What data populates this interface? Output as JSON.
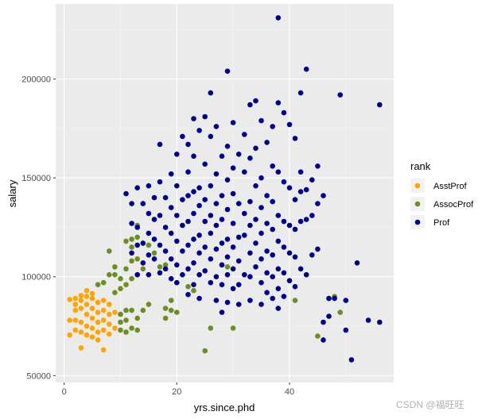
{
  "chart_data": {
    "type": "scatter",
    "title": "",
    "xlabel": "yrs.since.phd",
    "ylabel": "salary",
    "xlim": [
      -1.5,
      58.5
    ],
    "ylim": [
      46500,
      238000
    ],
    "x_ticks": [
      0,
      20,
      40
    ],
    "x_minor_ticks": [
      10,
      30,
      50
    ],
    "y_ticks": [
      50000,
      100000,
      150000,
      200000
    ],
    "y_minor_ticks": [
      75000,
      125000,
      175000,
      225000
    ],
    "grid": true,
    "legend": {
      "title": "rank",
      "position": "right"
    },
    "series": [
      {
        "name": "AsstProf",
        "color": "#FFA500",
        "points": [
          [
            1,
            88500
          ],
          [
            1,
            78000
          ],
          [
            1,
            70500
          ],
          [
            2,
            89000
          ],
          [
            2,
            83000
          ],
          [
            2,
            78000
          ],
          [
            2,
            73000
          ],
          [
            2,
            86000
          ],
          [
            3,
            90500
          ],
          [
            3,
            84000
          ],
          [
            3,
            77000
          ],
          [
            3,
            72000
          ],
          [
            3,
            64000
          ],
          [
            3,
            88000
          ],
          [
            4,
            93000
          ],
          [
            4,
            86000
          ],
          [
            4,
            81000
          ],
          [
            4,
            75000
          ],
          [
            4,
            70500
          ],
          [
            4,
            90000
          ],
          [
            5,
            89000
          ],
          [
            5,
            84000
          ],
          [
            5,
            79000
          ],
          [
            5,
            74000
          ],
          [
            5,
            69500
          ],
          [
            5,
            91500
          ],
          [
            6,
            87000
          ],
          [
            6,
            82000
          ],
          [
            6,
            77000
          ],
          [
            6,
            72000
          ],
          [
            6,
            68000
          ],
          [
            7,
            88000
          ],
          [
            7,
            83000
          ],
          [
            7,
            78000
          ],
          [
            7,
            73000
          ],
          [
            7,
            63000
          ],
          [
            8,
            86000
          ],
          [
            8,
            81000
          ],
          [
            8,
            76000
          ],
          [
            8,
            71000
          ],
          [
            9,
            82000
          ],
          [
            9,
            74000
          ]
        ]
      },
      {
        "name": "AssocProf",
        "color": "#6B8E23",
        "points": [
          [
            6,
            96000
          ],
          [
            7,
            97000
          ],
          [
            8,
            101000
          ],
          [
            8,
            113000
          ],
          [
            9,
            101000
          ],
          [
            9,
            92000
          ],
          [
            9,
            105000
          ],
          [
            10,
            99000
          ],
          [
            10,
            81000
          ],
          [
            10,
            73000
          ],
          [
            10,
            77000
          ],
          [
            10,
            94000
          ],
          [
            11,
            118000
          ],
          [
            11,
            96000
          ],
          [
            11,
            83000
          ],
          [
            11,
            78000
          ],
          [
            11,
            72000
          ],
          [
            11,
            104000
          ],
          [
            12,
            119000
          ],
          [
            12,
            108000
          ],
          [
            12,
            99000
          ],
          [
            12,
            83000
          ],
          [
            12,
            74000
          ],
          [
            12,
            115000
          ],
          [
            13,
            126000
          ],
          [
            13,
            120000
          ],
          [
            13,
            109000
          ],
          [
            13,
            101000
          ],
          [
            13,
            79000
          ],
          [
            13,
            73000
          ],
          [
            14,
            104000
          ],
          [
            14,
            83000
          ],
          [
            15,
            116000
          ],
          [
            15,
            86000
          ],
          [
            16,
            112000
          ],
          [
            17,
            105000
          ],
          [
            18,
            106000
          ],
          [
            18,
            84000
          ],
          [
            18,
            79000
          ],
          [
            19,
            88000
          ],
          [
            19,
            83000
          ],
          [
            20,
            82000
          ],
          [
            22,
            95000
          ],
          [
            23,
            93000
          ],
          [
            25,
            62500
          ],
          [
            26,
            74000
          ],
          [
            28,
            106000
          ],
          [
            29,
            105000
          ],
          [
            30,
            74000
          ],
          [
            41,
            88000
          ],
          [
            45,
            70000
          ],
          [
            47,
            89000
          ],
          [
            48,
            90000
          ],
          [
            49,
            82000
          ]
        ]
      },
      {
        "name": "Prof",
        "color": "#00008B",
        "points": [
          [
            11,
            142000
          ],
          [
            12,
            137000
          ],
          [
            12,
            127000
          ],
          [
            12,
            112000
          ],
          [
            13,
            145000
          ],
          [
            13,
            125000
          ],
          [
            13,
            116000
          ],
          [
            13,
            101000
          ],
          [
            14,
            137000
          ],
          [
            14,
            117000
          ],
          [
            14,
            107000
          ],
          [
            15,
            146000
          ],
          [
            15,
            132000
          ],
          [
            15,
            122000
          ],
          [
            15,
            111000
          ],
          [
            15,
            101000
          ],
          [
            16,
            140000
          ],
          [
            16,
            129000
          ],
          [
            16,
            119000
          ],
          [
            16,
            109000
          ],
          [
            17,
            167000
          ],
          [
            17,
            148000
          ],
          [
            17,
            131000
          ],
          [
            17,
            116000
          ],
          [
            17,
            102000
          ],
          [
            18,
            140000
          ],
          [
            18,
            125000
          ],
          [
            18,
            113000
          ],
          [
            18,
            104000
          ],
          [
            19,
            152000
          ],
          [
            19,
            135000
          ],
          [
            19,
            122000
          ],
          [
            19,
            109000
          ],
          [
            19,
            99000
          ],
          [
            20,
            162000
          ],
          [
            20,
            146000
          ],
          [
            20,
            131000
          ],
          [
            20,
            118000
          ],
          [
            20,
            106000
          ],
          [
            20,
            97000
          ],
          [
            21,
            171000
          ],
          [
            21,
            139000
          ],
          [
            21,
            126000
          ],
          [
            21,
            113000
          ],
          [
            21,
            101000
          ],
          [
            22,
            167000
          ],
          [
            22,
            153000
          ],
          [
            22,
            141000
          ],
          [
            22,
            128000
          ],
          [
            22,
            116000
          ],
          [
            22,
            104000
          ],
          [
            22,
            91000
          ],
          [
            23,
            180000
          ],
          [
            23,
            161000
          ],
          [
            23,
            143000
          ],
          [
            23,
            132000
          ],
          [
            23,
            119000
          ],
          [
            23,
            107000
          ],
          [
            23,
            96000
          ],
          [
            24,
            174000
          ],
          [
            24,
            145000
          ],
          [
            24,
            136000
          ],
          [
            24,
            121000
          ],
          [
            24,
            112000
          ],
          [
            24,
            101000
          ],
          [
            24,
            89000
          ],
          [
            25,
            181000
          ],
          [
            25,
            157000
          ],
          [
            25,
            139000
          ],
          [
            25,
            128000
          ],
          [
            25,
            115000
          ],
          [
            25,
            103000
          ],
          [
            26,
            193000
          ],
          [
            26,
            171000
          ],
          [
            26,
            146000
          ],
          [
            26,
            131000
          ],
          [
            26,
            122000
          ],
          [
            26,
            109000
          ],
          [
            26,
            97000
          ],
          [
            27,
            176000
          ],
          [
            27,
            152000
          ],
          [
            27,
            137000
          ],
          [
            27,
            126000
          ],
          [
            27,
            114000
          ],
          [
            27,
            100000
          ],
          [
            27,
            88000
          ],
          [
            28,
            161000
          ],
          [
            28,
            141000
          ],
          [
            28,
            129000
          ],
          [
            28,
            117000
          ],
          [
            28,
            106000
          ],
          [
            28,
            96000
          ],
          [
            28,
            82000
          ],
          [
            29,
            204000
          ],
          [
            29,
            166000
          ],
          [
            29,
            149000
          ],
          [
            29,
            134000
          ],
          [
            29,
            119000
          ],
          [
            29,
            110000
          ],
          [
            29,
            101000
          ],
          [
            29,
            87000
          ],
          [
            30,
            178000
          ],
          [
            30,
            155000
          ],
          [
            30,
            142000
          ],
          [
            30,
            127000
          ],
          [
            30,
            115000
          ],
          [
            30,
            104000
          ],
          [
            30,
            94000
          ],
          [
            31,
            162000
          ],
          [
            31,
            137000
          ],
          [
            31,
            120000
          ],
          [
            31,
            108000
          ],
          [
            31,
            96000
          ],
          [
            31,
            86000
          ],
          [
            32,
            172000
          ],
          [
            32,
            153000
          ],
          [
            32,
            132000
          ],
          [
            32,
            121000
          ],
          [
            32,
            101000
          ],
          [
            33,
            187000
          ],
          [
            33,
            160000
          ],
          [
            33,
            138000
          ],
          [
            33,
            126000
          ],
          [
            33,
            112000
          ],
          [
            33,
            100000
          ],
          [
            33,
            88000
          ],
          [
            34,
            189000
          ],
          [
            34,
            165000
          ],
          [
            34,
            146000
          ],
          [
            34,
            129000
          ],
          [
            34,
            117000
          ],
          [
            34,
            105000
          ],
          [
            35,
            179000
          ],
          [
            35,
            150000
          ],
          [
            35,
            135000
          ],
          [
            35,
            122000
          ],
          [
            35,
            109000
          ],
          [
            35,
            97000
          ],
          [
            35,
            86000
          ],
          [
            36,
            168000
          ],
          [
            36,
            141000
          ],
          [
            36,
            127000
          ],
          [
            36,
            113000
          ],
          [
            36,
            102000
          ],
          [
            36,
            92000
          ],
          [
            37,
            176000
          ],
          [
            37,
            156000
          ],
          [
            37,
            138000
          ],
          [
            37,
            124000
          ],
          [
            37,
            111000
          ],
          [
            37,
            100000
          ],
          [
            37,
            89000
          ],
          [
            38,
            231000
          ],
          [
            38,
            188000
          ],
          [
            38,
            153000
          ],
          [
            38,
            131000
          ],
          [
            38,
            118000
          ],
          [
            38,
            104000
          ],
          [
            38,
            94000
          ],
          [
            38,
            84000
          ],
          [
            39,
            183000
          ],
          [
            39,
            148000
          ],
          [
            39,
            128000
          ],
          [
            39,
            115000
          ],
          [
            39,
            102000
          ],
          [
            39,
            90000
          ],
          [
            40,
            177000
          ],
          [
            40,
            145000
          ],
          [
            40,
            126000
          ],
          [
            40,
            112000
          ],
          [
            40,
            98000
          ],
          [
            41,
            170000
          ],
          [
            41,
            139000
          ],
          [
            41,
            124000
          ],
          [
            41,
            110000
          ],
          [
            41,
            95000
          ],
          [
            42,
            193000
          ],
          [
            42,
            153000
          ],
          [
            42,
            143000
          ],
          [
            42,
            128000
          ],
          [
            42,
            104000
          ],
          [
            43,
            205000
          ],
          [
            43,
            144000
          ],
          [
            43,
            129000
          ],
          [
            43,
            101000
          ],
          [
            44,
            149000
          ],
          [
            44,
            131000
          ],
          [
            44,
            111000
          ],
          [
            45,
            156000
          ],
          [
            45,
            137000
          ],
          [
            45,
            114000
          ],
          [
            46,
            141000
          ],
          [
            46,
            77000
          ],
          [
            46,
            68000
          ],
          [
            47,
            89000
          ],
          [
            47,
            80000
          ],
          [
            48,
            89000
          ],
          [
            49,
            192000
          ],
          [
            50,
            88000
          ],
          [
            50,
            73000
          ],
          [
            51,
            58000
          ],
          [
            52,
            107000
          ],
          [
            54,
            78000
          ],
          [
            56,
            187000
          ],
          [
            56,
            77000
          ]
        ]
      }
    ]
  },
  "watermark": "CSDN @福旺旺"
}
